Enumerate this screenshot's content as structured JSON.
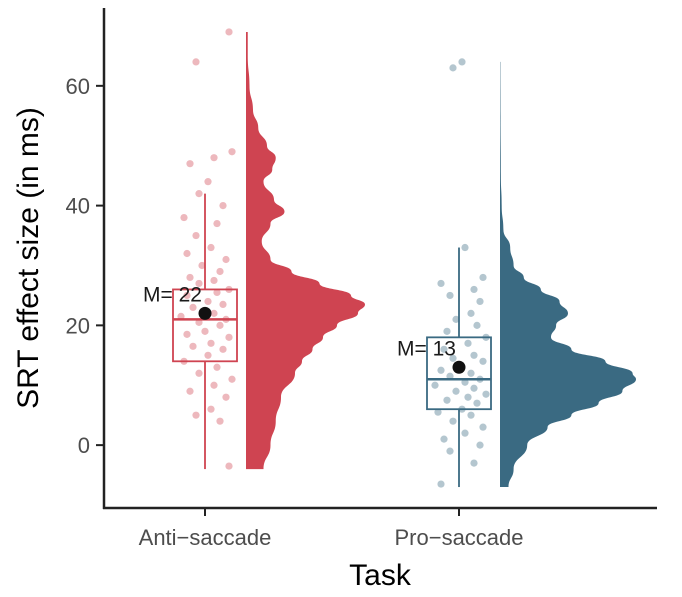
{
  "chart_data": {
    "type": "raincloud",
    "xlabel": "Task",
    "ylabel": "SRT effect size (in ms)",
    "ylim": [
      -10.5,
      73
    ],
    "yticks": [
      0,
      20,
      40,
      60
    ],
    "categories": [
      "Anti−saccade",
      "Pro−saccade"
    ],
    "colors": [
      "#cf4451",
      "#3a6a82"
    ],
    "groups": [
      {
        "name": "Anti−saccade",
        "mean": 22,
        "mean_label": "M= 22",
        "box": {
          "whisker_low": -4,
          "q1": 14,
          "median": 21,
          "q3": 26,
          "whisker_high": 42
        },
        "density": [
          [
            -4,
            0.1
          ],
          [
            0,
            0.14
          ],
          [
            4,
            0.17
          ],
          [
            8,
            0.2
          ],
          [
            12,
            0.28
          ],
          [
            14,
            0.32
          ],
          [
            16,
            0.38
          ],
          [
            18,
            0.44
          ],
          [
            20,
            0.52
          ],
          [
            22,
            0.64
          ],
          [
            23.5,
            0.68
          ],
          [
            25,
            0.6
          ],
          [
            27,
            0.42
          ],
          [
            29,
            0.26
          ],
          [
            31,
            0.14
          ],
          [
            34,
            0.09
          ],
          [
            37,
            0.14
          ],
          [
            39,
            0.22
          ],
          [
            41,
            0.16
          ],
          [
            44,
            0.1
          ],
          [
            46,
            0.15
          ],
          [
            48,
            0.17
          ],
          [
            50,
            0.12
          ],
          [
            53,
            0.07
          ],
          [
            56,
            0.04
          ],
          [
            60,
            0.02
          ],
          [
            65,
            0.01
          ],
          [
            69,
            0.01
          ]
        ],
        "points": [
          [
            -3.5,
            0.8
          ],
          [
            4,
            0.5
          ],
          [
            5,
            -0.3
          ],
          [
            6,
            0.2
          ],
          [
            8,
            0.7
          ],
          [
            9,
            -0.5
          ],
          [
            10,
            0.3
          ],
          [
            11,
            0.9
          ],
          [
            12,
            -0.2
          ],
          [
            13,
            0.4
          ],
          [
            14,
            -0.7
          ],
          [
            15,
            0.1
          ],
          [
            16,
            0.6
          ],
          [
            16.5,
            -0.4
          ],
          [
            17,
            0.2
          ],
          [
            18,
            0.8
          ],
          [
            18.5,
            -0.6
          ],
          [
            19,
            0.0
          ],
          [
            20,
            0.5
          ],
          [
            20.5,
            -0.2
          ],
          [
            21,
            0.7
          ],
          [
            21.5,
            -0.8
          ],
          [
            22,
            0.3
          ],
          [
            23,
            -0.4
          ],
          [
            23.5,
            0.6
          ],
          [
            24,
            0.1
          ],
          [
            25,
            -0.6
          ],
          [
            25.5,
            0.4
          ],
          [
            26,
            0.8
          ],
          [
            27,
            -0.2
          ],
          [
            27.5,
            0.3
          ],
          [
            28,
            -0.5
          ],
          [
            29,
            0.5
          ],
          [
            30,
            -0.1
          ],
          [
            31,
            0.7
          ],
          [
            32,
            -0.6
          ],
          [
            33,
            0.2
          ],
          [
            35,
            -0.3
          ],
          [
            37,
            0.4
          ],
          [
            38,
            -0.7
          ],
          [
            40,
            0.6
          ],
          [
            42,
            -0.2
          ],
          [
            44,
            0.1
          ],
          [
            47,
            -0.5
          ],
          [
            48,
            0.3
          ],
          [
            49,
            0.9
          ],
          [
            64,
            -0.3
          ],
          [
            69,
            0.8
          ]
        ]
      },
      {
        "name": "Pro−saccade",
        "mean": 13,
        "mean_label": "M= 13",
        "box": {
          "whisker_low": -7,
          "q1": 6,
          "median": 11,
          "q3": 18,
          "whisker_high": 33
        },
        "density": [
          [
            -7,
            0.05
          ],
          [
            -4,
            0.08
          ],
          [
            0,
            0.16
          ],
          [
            3,
            0.28
          ],
          [
            5,
            0.42
          ],
          [
            7,
            0.58
          ],
          [
            9,
            0.72
          ],
          [
            11,
            0.8
          ],
          [
            12,
            0.78
          ],
          [
            14,
            0.62
          ],
          [
            16,
            0.42
          ],
          [
            18,
            0.3
          ],
          [
            20,
            0.33
          ],
          [
            22,
            0.4
          ],
          [
            24,
            0.35
          ],
          [
            26,
            0.24
          ],
          [
            28,
            0.14
          ],
          [
            30,
            0.08
          ],
          [
            33,
            0.06
          ],
          [
            36,
            0.02
          ],
          [
            40,
            0.01
          ],
          [
            45,
            0.005
          ],
          [
            55,
            0.003
          ],
          [
            64,
            0.002
          ]
        ],
        "points": [
          [
            -6.5,
            -0.6
          ],
          [
            -3,
            0.5
          ],
          [
            -1,
            -0.3
          ],
          [
            0,
            0.7
          ],
          [
            1,
            -0.5
          ],
          [
            2,
            0.2
          ],
          [
            3,
            0.8
          ],
          [
            4,
            -0.2
          ],
          [
            5,
            0.4
          ],
          [
            5.5,
            -0.7
          ],
          [
            6,
            0.1
          ],
          [
            7,
            0.6
          ],
          [
            7.5,
            -0.4
          ],
          [
            8,
            0.3
          ],
          [
            8.5,
            0.9
          ],
          [
            9,
            -0.1
          ],
          [
            9.5,
            0.5
          ],
          [
            10,
            -0.8
          ],
          [
            10.5,
            0.2
          ],
          [
            11,
            0.7
          ],
          [
            11.5,
            -0.3
          ],
          [
            12,
            0.4
          ],
          [
            12.5,
            -0.6
          ],
          [
            13,
            0.0
          ],
          [
            14,
            0.8
          ],
          [
            14.5,
            -0.2
          ],
          [
            15,
            0.5
          ],
          [
            16,
            -0.5
          ],
          [
            17,
            0.3
          ],
          [
            18,
            0.9
          ],
          [
            19,
            -0.4
          ],
          [
            20,
            0.6
          ],
          [
            21,
            -0.1
          ],
          [
            22,
            0.4
          ],
          [
            24,
            0.7
          ],
          [
            25,
            -0.3
          ],
          [
            26,
            0.5
          ],
          [
            27,
            -0.6
          ],
          [
            28,
            0.8
          ],
          [
            33,
            0.2
          ],
          [
            63,
            -0.2
          ],
          [
            64,
            0.1
          ]
        ]
      }
    ]
  }
}
